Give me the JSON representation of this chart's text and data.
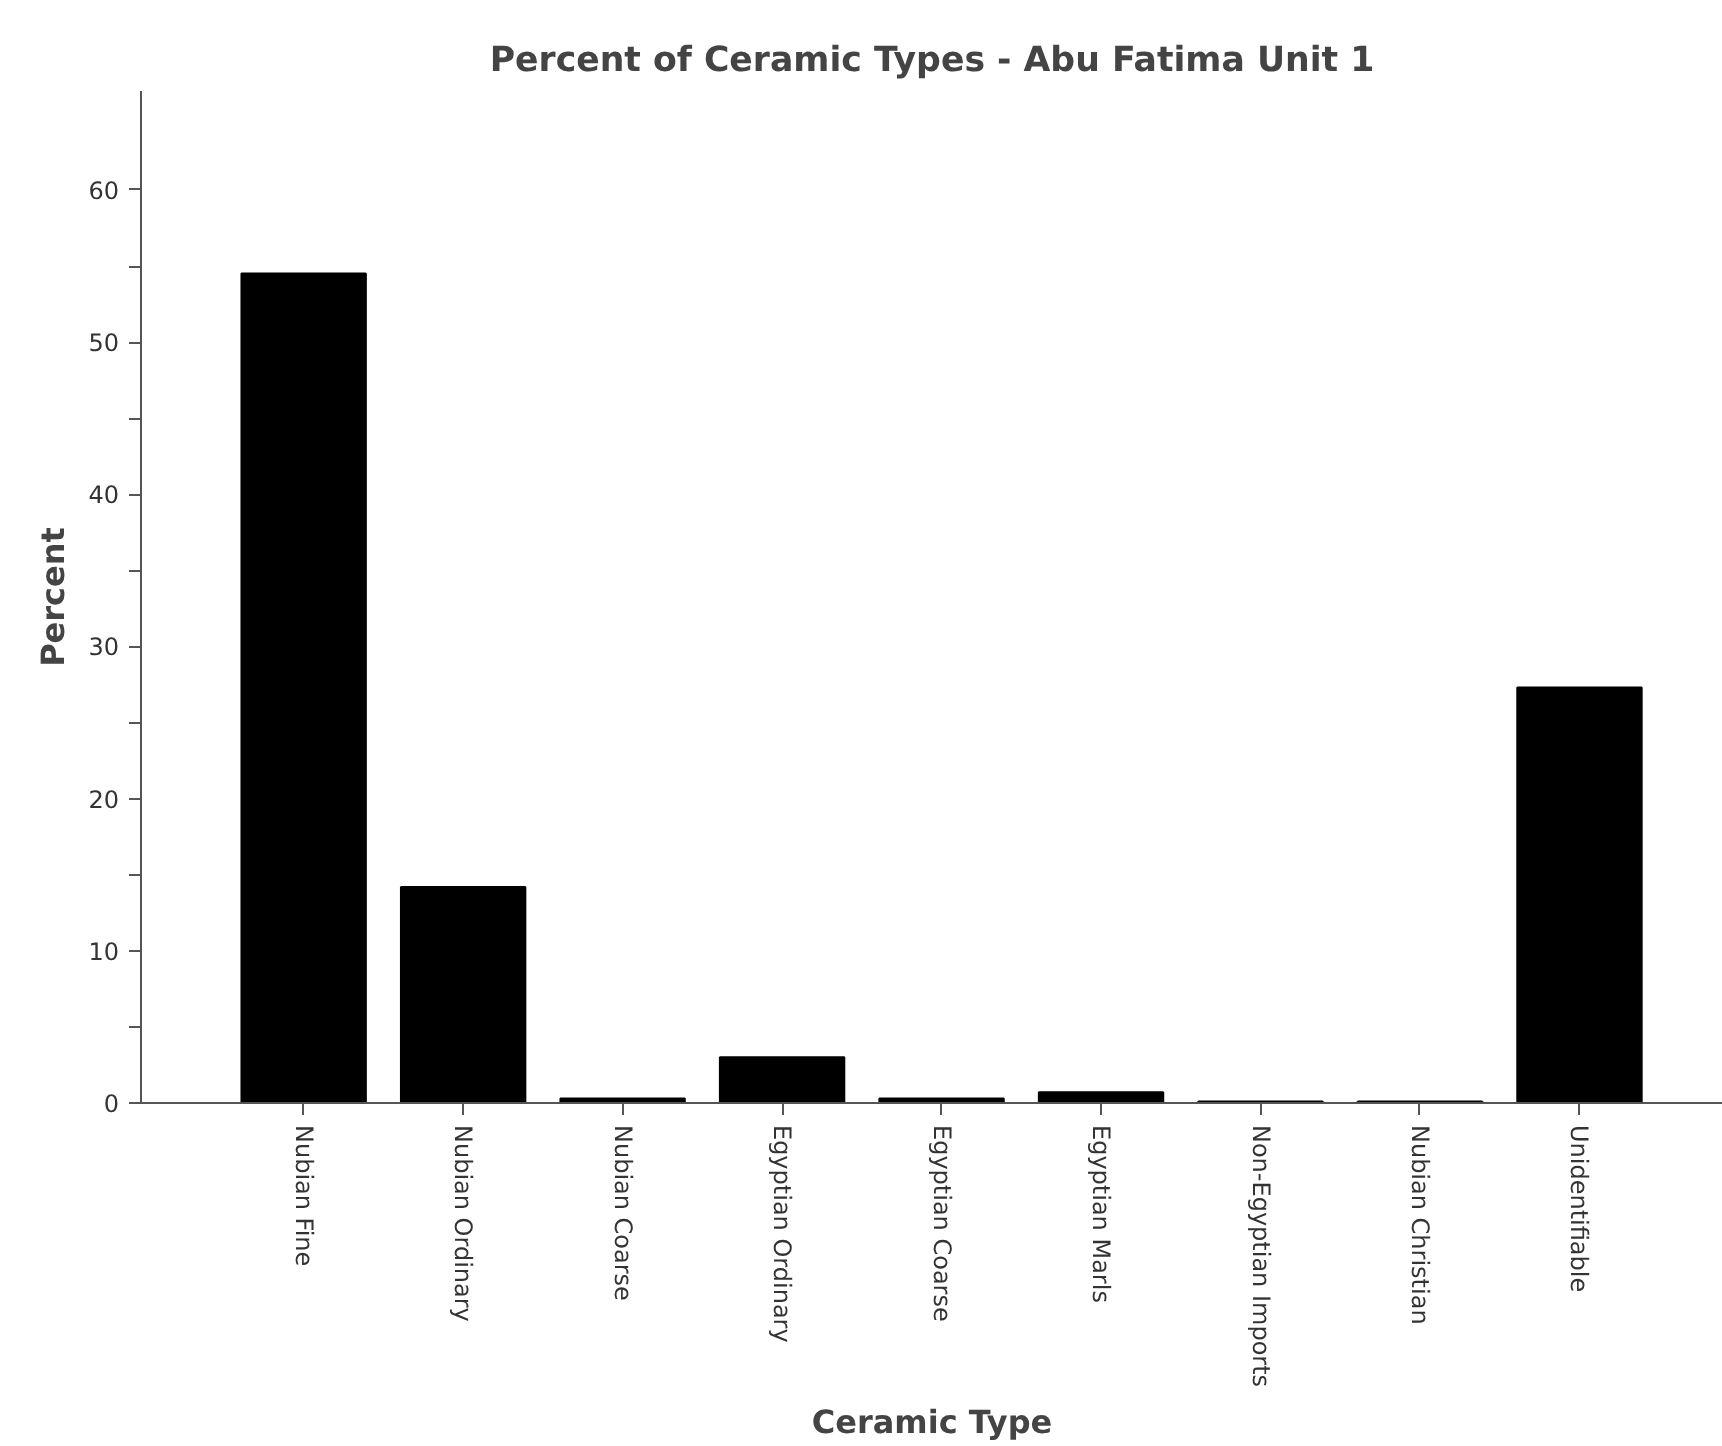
{
  "chart_data": {
    "type": "bar",
    "title": "Percent of Ceramic Types - Abu Fatima Unit 1",
    "xlabel": "Ceramic Type",
    "ylabel": "Percent",
    "categories": [
      "Nubian Fine",
      "Nubian Ordinary",
      "Nubian Coarse",
      "Egyptian Ordinary",
      "Egyptian Coarse",
      "Egyptian Marls",
      "Non-Egyptian Imports",
      "Nubian Christian",
      "Unidentifiable"
    ],
    "values": [
      54.5,
      14.2,
      0.3,
      3.0,
      0.3,
      0.7,
      0.1,
      0.1,
      27.3
    ],
    "color": "#000000",
    "ylim": [
      0,
      66.5
    ],
    "yticks": [
      0,
      {
        "value": 5,
        "label": null
      },
      10,
      {
        "value": 15,
        "label": null
      },
      20,
      {
        "value": 25,
        "label": null
      },
      30,
      {
        "value": 35,
        "label": null
      },
      40,
      {
        "value": 45,
        "label": null
      },
      50,
      {
        "value": 55,
        "label": null
      },
      60
    ],
    "grid": false
  }
}
